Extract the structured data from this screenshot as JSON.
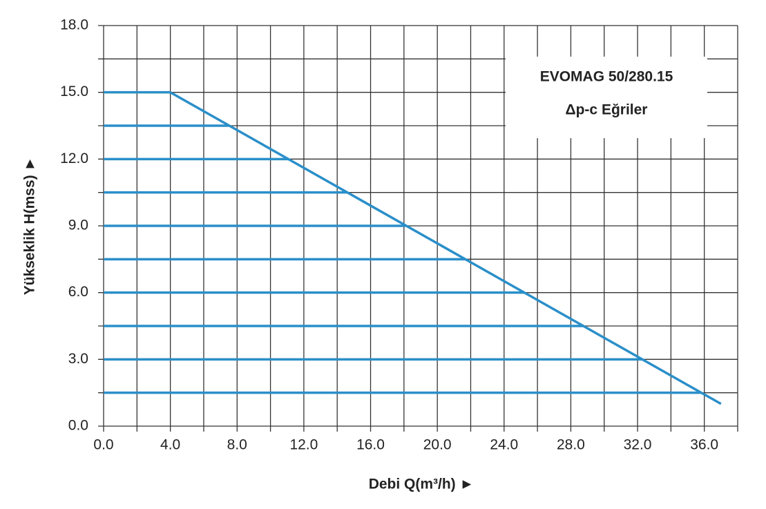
{
  "chart_data": {
    "type": "line",
    "title": "EVOMAG 50/280.15",
    "subtitle": "Δp-c Eğriler",
    "x_label": "Debi Q(m³/h) ►",
    "y_label": "Yükseklik H(mss) ►",
    "xlim": [
      0,
      38
    ],
    "ylim": [
      0,
      18
    ],
    "xticks": [
      {
        "value": 0,
        "label": "0.0"
      },
      {
        "value": 4,
        "label": "4.0"
      },
      {
        "value": 8,
        "label": "8.0"
      },
      {
        "value": 12,
        "label": "12.0"
      },
      {
        "value": 16,
        "label": "16.0"
      },
      {
        "value": 20,
        "label": "20.0"
      },
      {
        "value": 24,
        "label": "24.0"
      },
      {
        "value": 28,
        "label": "28.0"
      },
      {
        "value": 32,
        "label": "32.0"
      },
      {
        "value": 36,
        "label": "36.0"
      }
    ],
    "yticks": [
      {
        "value": 0,
        "label": "0.0"
      },
      {
        "value": 3,
        "label": "3.0"
      },
      {
        "value": 6,
        "label": "6.0"
      },
      {
        "value": 9,
        "label": "9.0"
      },
      {
        "value": 12,
        "label": "12.0"
      },
      {
        "value": 15,
        "label": "15.0"
      },
      {
        "value": 18,
        "label": "18.0"
      }
    ],
    "xminorticks": [
      2,
      6,
      10,
      14,
      18,
      22,
      26,
      30,
      34,
      38
    ],
    "yminorticks": [
      1.5,
      4.5,
      7.5,
      10.5,
      13.5,
      16.5
    ],
    "grid": true,
    "series": [
      {
        "color": "#2a8fc9",
        "x": [
          0,
          4,
          37
        ],
        "values": [
          15,
          15,
          1
        ]
      },
      {
        "color": "#2a8fc9",
        "x": [
          0,
          7.5
        ],
        "values": [
          13.5,
          13.5
        ]
      },
      {
        "color": "#2a8fc9",
        "x": [
          0,
          11.1
        ],
        "values": [
          12,
          12
        ]
      },
      {
        "color": "#2a8fc9",
        "x": [
          0,
          14.6
        ],
        "values": [
          10.5,
          10.5
        ]
      },
      {
        "color": "#2a8fc9",
        "x": [
          0,
          18.1
        ],
        "values": [
          9,
          9
        ]
      },
      {
        "color": "#2a8fc9",
        "x": [
          0,
          21.7
        ],
        "values": [
          7.5,
          7.5
        ]
      },
      {
        "color": "#2a8fc9",
        "x": [
          0,
          25.2
        ],
        "values": [
          6,
          6
        ]
      },
      {
        "color": "#2a8fc9",
        "x": [
          0,
          28.8
        ],
        "values": [
          4.5,
          4.5
        ]
      },
      {
        "color": "#2a8fc9",
        "x": [
          0,
          32.3
        ],
        "values": [
          3,
          3
        ]
      },
      {
        "color": "#2a8fc9",
        "x": [
          0,
          35.8
        ],
        "values": [
          1.5,
          1.5
        ]
      }
    ]
  }
}
